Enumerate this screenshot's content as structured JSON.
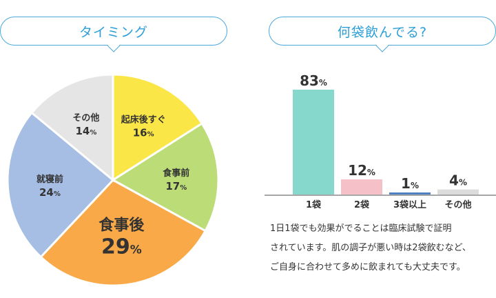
{
  "pie_title": "タイミング",
  "bar_title": "何袋飲んでる?",
  "description": [
    "1日1袋でも効果がでることは臨床試験で証明",
    "されています。肌の調子が悪い時は2袋飲むなど、",
    "ご自身に合わせて多めに飲まれても大丈夫です。"
  ],
  "chart_data": [
    {
      "type": "pie",
      "title": "タイミング",
      "unit": "%",
      "slices": [
        {
          "label": "起床後すぐ",
          "value": 16,
          "color": "#fbe647"
        },
        {
          "label": "食事前",
          "value": 17,
          "color": "#bcdc78"
        },
        {
          "label": "食事後",
          "value": 29,
          "color": "#f9a947"
        },
        {
          "label": "就寝前",
          "value": 24,
          "color": "#a6bde4"
        },
        {
          "label": "その他",
          "value": 14,
          "color": "#e5e5e5"
        }
      ]
    },
    {
      "type": "bar",
      "title": "何袋飲んでる?",
      "unit": "%",
      "categories": [
        "1袋",
        "2袋",
        "3袋以上",
        "その他"
      ],
      "values": [
        83,
        12,
        1,
        4
      ],
      "colors": [
        "#86d8cd",
        "#f5c0c8",
        "#4d7fc1",
        "#dcdcdc"
      ],
      "ylim": [
        0,
        83
      ]
    }
  ]
}
